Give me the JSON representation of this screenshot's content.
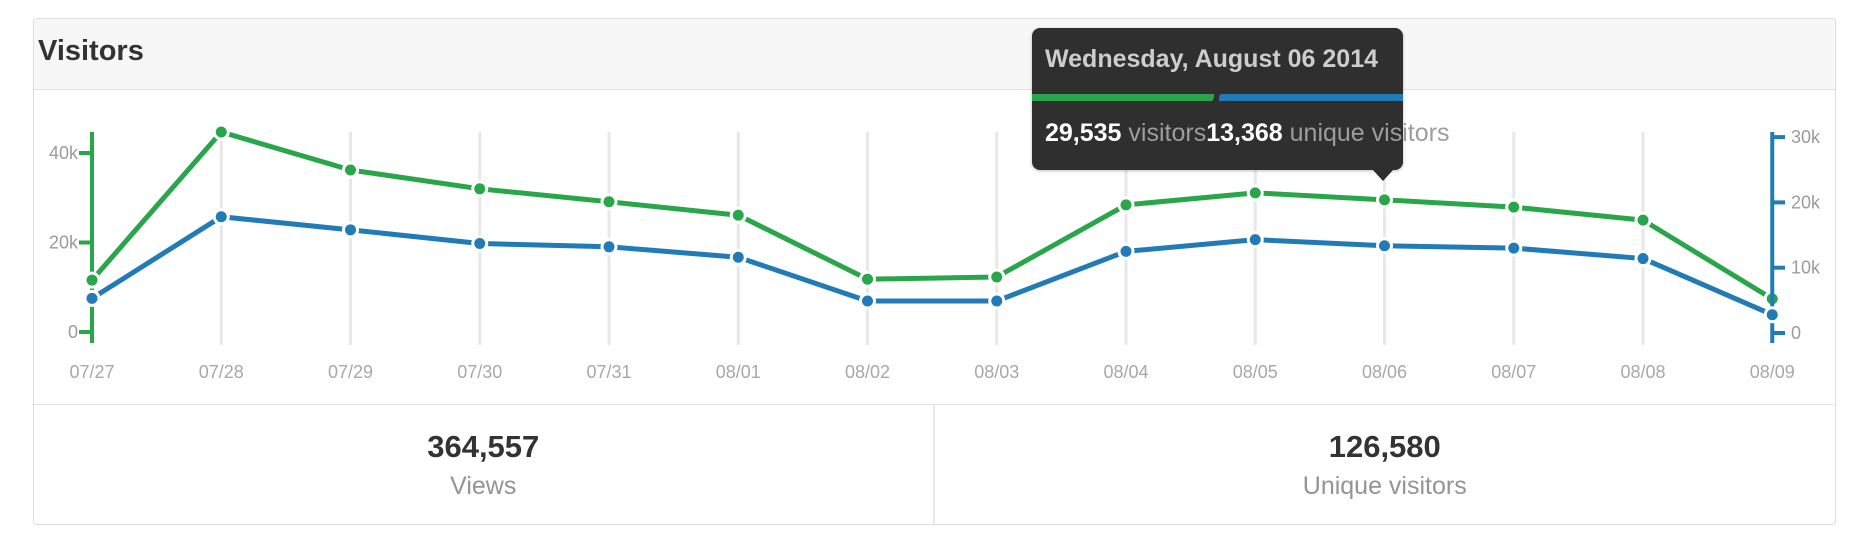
{
  "card": {
    "title": "Visitors",
    "stats": [
      {
        "value": "364,557",
        "label": "Views"
      },
      {
        "value": "126,580",
        "label": "Unique visitors"
      }
    ]
  },
  "tooltip": {
    "title": "Wednesday, August 06 2014",
    "entries": [
      {
        "value": "29,535",
        "label": "visitors",
        "color": "#2aa64a"
      },
      {
        "value": "13,368",
        "label": "unique visitors",
        "color": "#207bb7"
      }
    ],
    "points_to_category": "08/06"
  },
  "chart_data": {
    "type": "line",
    "title": "Visitors",
    "categories": [
      "07/27",
      "07/28",
      "07/29",
      "07/30",
      "07/31",
      "08/01",
      "08/02",
      "08/03",
      "08/04",
      "08/05",
      "08/06",
      "08/07",
      "08/08",
      "08/09"
    ],
    "series": [
      {
        "name": "visitors",
        "axis": "left",
        "color": "#2aa64a",
        "values": [
          11600,
          44700,
          36200,
          32000,
          29100,
          26100,
          11800,
          12300,
          28400,
          31100,
          29535,
          27900,
          25000,
          7400
        ]
      },
      {
        "name": "unique visitors",
        "axis": "right",
        "color": "#207bb7",
        "values": [
          5300,
          17800,
          15800,
          13700,
          13200,
          11600,
          4900,
          4900,
          12500,
          14300,
          13368,
          13000,
          11400,
          2800
        ]
      }
    ],
    "left_axis": {
      "color": "#2aa64a",
      "ylim": [
        0,
        45000
      ],
      "ticks": [
        "0",
        "20k",
        "40k"
      ],
      "tick_values": [
        0,
        20000,
        40000
      ]
    },
    "right_axis": {
      "color": "#207bb7",
      "ylim": [
        0,
        30000
      ],
      "ticks": [
        "0",
        "10k",
        "20k",
        "30k"
      ],
      "tick_values": [
        0,
        10000,
        20000,
        30000
      ]
    },
    "grid": "vertical",
    "legend_position": "none",
    "highlighted_index": 10,
    "label_color": "#9b9b9b",
    "grid_color": "#e8e8e8"
  }
}
